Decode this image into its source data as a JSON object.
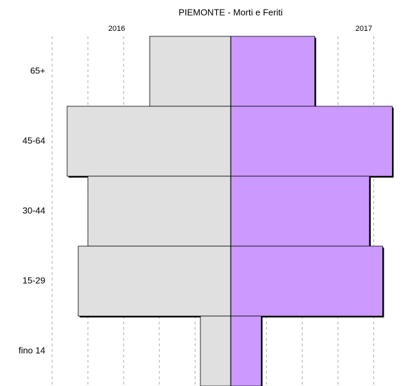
{
  "chart_data": {
    "type": "pyramid",
    "title": "PIEMONTE - Morti e Feriti",
    "categories": [
      "65+",
      "45-64",
      "30-44",
      "15-29",
      "fino 14"
    ],
    "series": [
      {
        "name": "2016",
        "color": "#e0e0e0",
        "values": [
          1135,
          2290,
          2000,
          2135,
          425
        ]
      },
      {
        "name": "2017",
        "color": "#cc99ff",
        "values": [
          1175,
          2260,
          1940,
          2125,
          425
        ]
      }
    ],
    "xlim": [
      -2500,
      2400
    ],
    "xticks": [
      -2500,
      -2000,
      -1500,
      -1000,
      -500,
      0,
      500,
      1000,
      1500,
      2000
    ],
    "grid": true
  }
}
